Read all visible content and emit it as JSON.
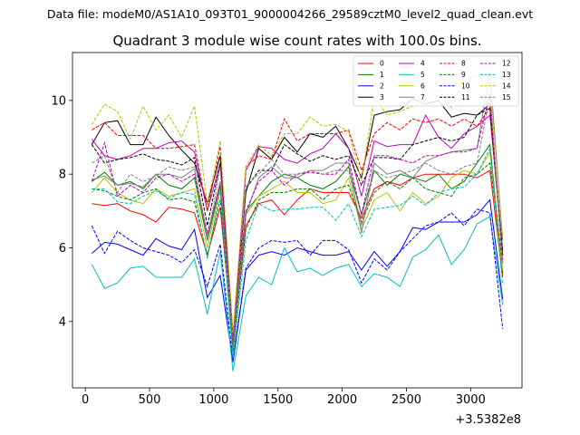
{
  "chart_data": {
    "type": "line",
    "suptitle": "Data file: modeM0/AS1A10_093T01_9000004266_29589cztM0_level2_quad_clean.evt",
    "title": "Quadrant 3 module wise count rates with 100.0s bins.",
    "xlabel": "",
    "ylabel": "",
    "x_offset_label": "+3.5382e8",
    "xlim": [
      -100,
      3400
    ],
    "ylim": [
      2.2,
      11.3
    ],
    "x_ticks": [
      0,
      500,
      1000,
      1500,
      2000,
      2500,
      3000
    ],
    "y_ticks": [
      4,
      6,
      8,
      10
    ],
    "x": [
      50,
      150,
      250,
      350,
      450,
      550,
      650,
      750,
      850,
      950,
      1050,
      1150,
      1250,
      1350,
      1450,
      1550,
      1650,
      1750,
      1850,
      1950,
      2050,
      2150,
      2250,
      2350,
      2450,
      2550,
      2650,
      2750,
      2850,
      2950,
      3050,
      3150,
      3250
    ],
    "legend_position": "top-right",
    "series": [
      {
        "name": "0",
        "color": "#ff0000",
        "dash": "solid",
        "values": [
          7.2,
          7.15,
          7.2,
          7.0,
          6.9,
          6.7,
          7.1,
          7.05,
          6.95,
          5.8,
          7.1,
          3.4,
          6.6,
          7.2,
          7.3,
          6.9,
          7.3,
          7.6,
          7.5,
          7.5,
          7.5,
          6.8,
          7.6,
          7.8,
          7.7,
          7.9,
          8.0,
          8.0,
          8.0,
          8.0,
          7.9,
          8.1,
          5.2
        ]
      },
      {
        "name": "1",
        "color": "#008000",
        "dash": "solid",
        "values": [
          7.8,
          8.05,
          7.7,
          7.8,
          7.6,
          8.0,
          7.7,
          7.6,
          7.9,
          6.2,
          7.7,
          3.3,
          7.0,
          7.4,
          7.8,
          8.0,
          7.9,
          7.7,
          7.6,
          7.8,
          8.2,
          6.9,
          8.1,
          7.7,
          8.0,
          7.9,
          7.8,
          8.0,
          7.6,
          7.8,
          8.3,
          8.8,
          5.3
        ]
      },
      {
        "name": "2",
        "color": "#0000ff",
        "dash": "solid",
        "values": [
          5.85,
          6.15,
          6.1,
          5.95,
          5.8,
          6.25,
          6.05,
          5.95,
          6.5,
          4.65,
          5.25,
          2.9,
          5.4,
          5.8,
          5.9,
          5.8,
          6.0,
          5.9,
          5.8,
          5.8,
          5.9,
          5.4,
          5.9,
          5.5,
          5.9,
          6.55,
          6.5,
          6.7,
          6.7,
          6.7,
          6.9,
          7.3,
          4.6
        ]
      },
      {
        "name": "3",
        "color": "#000000",
        "dash": "solid",
        "values": [
          8.8,
          9.4,
          9.45,
          8.8,
          8.8,
          9.55,
          9.05,
          8.65,
          8.3,
          7.2,
          8.5,
          3.6,
          7.5,
          8.7,
          8.4,
          9.0,
          8.6,
          9.1,
          9.0,
          9.3,
          8.7,
          7.9,
          9.6,
          9.7,
          9.75,
          10.05,
          9.9,
          10.0,
          9.55,
          9.65,
          9.6,
          9.9,
          5.8
        ]
      },
      {
        "name": "4",
        "color": "#c000c0",
        "dash": "solid",
        "values": [
          8.95,
          8.5,
          8.4,
          8.5,
          8.7,
          8.7,
          8.85,
          8.9,
          8.6,
          7.0,
          8.3,
          3.5,
          8.1,
          8.75,
          8.7,
          8.4,
          8.3,
          8.55,
          8.7,
          9.1,
          8.7,
          7.4,
          8.9,
          8.75,
          8.8,
          8.8,
          9.6,
          9.0,
          8.7,
          9.1,
          9.3,
          9.6,
          5.9
        ]
      },
      {
        "name": "5",
        "color": "#00bfbf",
        "dash": "solid",
        "values": [
          5.55,
          4.9,
          5.05,
          5.45,
          5.5,
          5.2,
          5.2,
          5.2,
          5.7,
          4.2,
          5.9,
          2.65,
          4.7,
          5.2,
          5.0,
          6.0,
          5.35,
          5.45,
          5.25,
          5.45,
          5.55,
          4.95,
          5.3,
          5.2,
          4.95,
          5.75,
          5.95,
          6.35,
          5.55,
          5.95,
          6.65,
          6.85,
          4.45
        ]
      },
      {
        "name": "6",
        "color": "#bfbf00",
        "dash": "solid",
        "values": [
          7.5,
          7.9,
          7.5,
          7.3,
          7.2,
          7.6,
          7.4,
          7.5,
          7.6,
          6.0,
          7.6,
          3.3,
          6.9,
          7.4,
          7.6,
          7.8,
          7.5,
          7.5,
          7.2,
          7.3,
          7.9,
          6.5,
          7.3,
          7.5,
          7.0,
          7.5,
          7.2,
          7.4,
          7.9,
          8.1,
          8.0,
          8.6,
          5.4
        ]
      },
      {
        "name": "7",
        "color": "#808080",
        "dash": "solid",
        "values": [
          7.85,
          7.95,
          7.7,
          7.75,
          7.65,
          8.0,
          8.0,
          7.9,
          8.15,
          6.3,
          7.8,
          3.3,
          6.9,
          7.9,
          8.2,
          7.9,
          7.9,
          8.1,
          8.1,
          8.3,
          8.3,
          6.4,
          8.3,
          8.0,
          8.1,
          7.9,
          8.35,
          8.5,
          8.6,
          8.65,
          8.7,
          10.8,
          6.2
        ]
      },
      {
        "name": "8",
        "color": "#ff0000",
        "dash": "dashed",
        "values": [
          9.2,
          9.4,
          9.05,
          9.05,
          9.05,
          8.7,
          8.7,
          8.75,
          8.8,
          7.0,
          8.75,
          3.5,
          8.2,
          8.5,
          8.4,
          9.5,
          8.9,
          9.1,
          9.1,
          9.1,
          9.2,
          8.1,
          9.1,
          9.4,
          9.2,
          9.5,
          9.4,
          9.5,
          9.3,
          9.5,
          9.3,
          9.8,
          5.7
        ]
      },
      {
        "name": "9",
        "color": "#008000",
        "dash": "dashed",
        "values": [
          7.6,
          7.55,
          7.4,
          7.3,
          7.5,
          7.6,
          7.3,
          7.35,
          7.25,
          5.8,
          7.3,
          3.2,
          6.5,
          7.3,
          7.5,
          7.5,
          7.6,
          7.6,
          7.3,
          7.6,
          7.7,
          6.7,
          7.5,
          7.8,
          7.6,
          7.9,
          7.6,
          7.5,
          7.4,
          7.9,
          8.0,
          8.3,
          5.6
        ]
      },
      {
        "name": "10",
        "color": "#0000ff",
        "dash": "dashed",
        "values": [
          6.6,
          5.85,
          6.45,
          6.2,
          6.0,
          5.9,
          5.8,
          5.6,
          5.95,
          4.95,
          6.1,
          2.95,
          5.45,
          6.0,
          6.2,
          6.15,
          6.2,
          5.8,
          6.2,
          6.2,
          5.95,
          5.05,
          5.7,
          5.4,
          5.9,
          6.25,
          6.6,
          6.7,
          6.95,
          6.6,
          7.05,
          6.95,
          3.8
        ]
      },
      {
        "name": "11",
        "color": "#000000",
        "dash": "dashed",
        "values": [
          8.8,
          8.3,
          8.4,
          8.45,
          8.55,
          8.4,
          8.35,
          8.25,
          8.45,
          6.6,
          8.3,
          3.3,
          7.6,
          8.1,
          8.1,
          8.8,
          8.55,
          8.35,
          8.5,
          8.4,
          8.5,
          7.7,
          8.45,
          8.45,
          8.4,
          8.8,
          8.9,
          9.0,
          8.9,
          9.0,
          9.6,
          9.8,
          5.9
        ]
      },
      {
        "name": "12",
        "color": "#c000c0",
        "dash": "dashed",
        "values": [
          7.8,
          8.85,
          7.4,
          7.7,
          7.5,
          7.9,
          8.0,
          7.8,
          8.0,
          6.4,
          7.7,
          3.6,
          7.0,
          7.8,
          8.1,
          7.7,
          8.0,
          8.05,
          8.0,
          8.0,
          8.4,
          6.9,
          8.5,
          8.5,
          8.4,
          8.3,
          8.5,
          8.5,
          8.6,
          8.6,
          8.7,
          10.2,
          5.6
        ]
      },
      {
        "name": "13",
        "color": "#00bfbf",
        "dash": "dashed",
        "values": [
          7.6,
          7.6,
          7.25,
          7.2,
          7.4,
          7.55,
          7.35,
          7.5,
          7.45,
          5.7,
          7.55,
          3.0,
          6.2,
          7.2,
          7.0,
          7.05,
          7.05,
          7.1,
          7.1,
          6.75,
          7.2,
          6.3,
          7.05,
          7.1,
          7.15,
          7.4,
          7.15,
          7.5,
          7.6,
          7.65,
          8.0,
          8.7,
          5.0
        ]
      },
      {
        "name": "14",
        "color": "#bfbf00",
        "dash": "dashed",
        "values": [
          9.35,
          9.9,
          9.7,
          8.95,
          9.85,
          9.2,
          9.6,
          9.0,
          9.85,
          7.2,
          8.9,
          3.7,
          8.2,
          8.8,
          8.5,
          9.1,
          9.1,
          9.55,
          9.3,
          9.35,
          9.15,
          7.8,
          10.1,
          9.6,
          9.7,
          9.85,
          10.0,
          10.3,
          9.8,
          10.6,
          10.7,
          10.4,
          6.3
        ]
      },
      {
        "name": "15",
        "color": "#808080",
        "dash": "dashed",
        "values": [
          8.3,
          8.5,
          7.5,
          8.0,
          7.8,
          7.95,
          8.2,
          8.1,
          8.2,
          6.2,
          8.2,
          3.3,
          7.7,
          8.0,
          8.4,
          8.0,
          8.0,
          8.1,
          8.0,
          8.1,
          8.1,
          6.6,
          8.1,
          7.9,
          8.0,
          8.1,
          8.3,
          8.1,
          8.0,
          8.2,
          8.3,
          10.1,
          5.6
        ]
      }
    ]
  }
}
